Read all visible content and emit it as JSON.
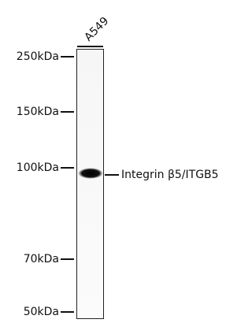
{
  "lane_label": "A549",
  "markers": [
    "250kDa",
    "150kDa",
    "100kDa",
    "70kDa",
    "50kDa"
  ],
  "band_label": "Integrin β5/ITGB5"
}
